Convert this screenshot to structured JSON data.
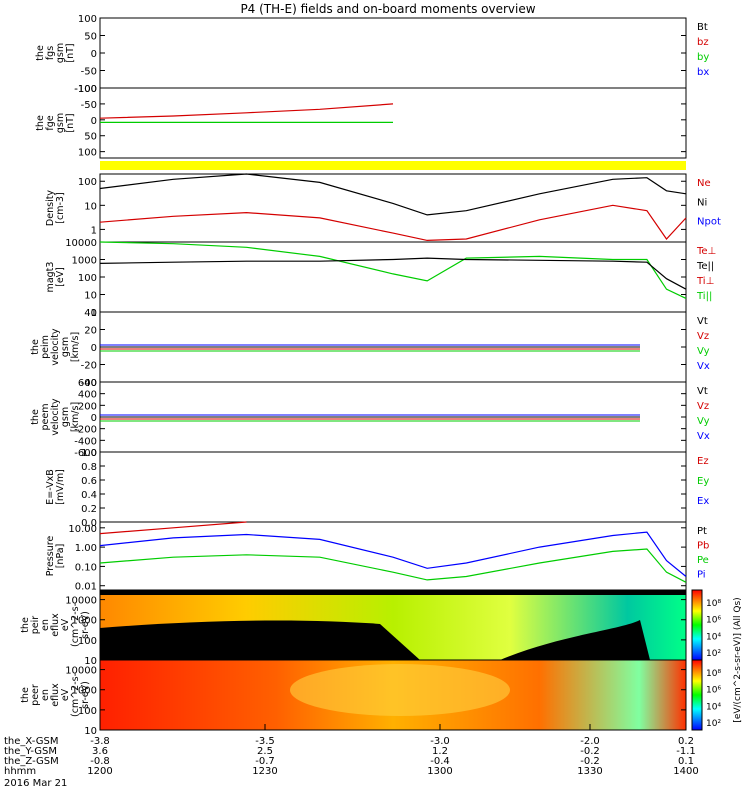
{
  "title": "P4 (TH-E) fields and on-board moments overview",
  "colors": {
    "black": "#000000",
    "red": "#d40000",
    "green": "#00cc00",
    "blue": "#0000ff",
    "yellow": "#ffff00"
  },
  "panels": [
    {
      "id": "fgs",
      "ylabel": [
        "the",
        "fgs",
        "gsm",
        "[nT]"
      ],
      "yticks": [
        "100",
        "50",
        "0",
        "-50",
        "-100"
      ],
      "ylim": [
        -100,
        100
      ],
      "legend": [
        {
          "text": "Bt",
          "color": "black"
        },
        {
          "text": "bz",
          "color": "red"
        },
        {
          "text": "by",
          "color": "green"
        },
        {
          "text": "bx",
          "color": "blue"
        }
      ]
    },
    {
      "id": "fge",
      "ylabel": [
        "the",
        "fge",
        "gsm",
        "[nT]"
      ],
      "yticks": [
        "-100",
        "-50",
        "0",
        "50",
        "100"
      ],
      "ylim": [
        -120,
        100
      ],
      "ytick_values": [
        100,
        50,
        0,
        -50,
        -100
      ],
      "legend": []
    },
    {
      "id": "density",
      "ylabel": [
        "Density",
        "[cm-3]"
      ],
      "yticks": [
        "100",
        "10",
        "1"
      ],
      "scale": "log",
      "ylim": [
        0.3,
        200
      ],
      "legend": [
        {
          "text": "Ne",
          "color": "red"
        },
        {
          "text": "Ni",
          "color": "black"
        },
        {
          "text": "Npot",
          "color": "blue"
        }
      ]
    },
    {
      "id": "temp",
      "ylabel": [
        "magt3",
        "[eV]"
      ],
      "yticks": [
        "10000",
        "1000",
        "100",
        "10",
        "1"
      ],
      "scale": "log",
      "ylim": [
        1,
        10000
      ],
      "legend": [
        {
          "text": "Te⊥",
          "color": "red"
        },
        {
          "text": "Te||",
          "color": "black"
        },
        {
          "text": "Ti⊥",
          "color": "red"
        },
        {
          "text": "Ti||",
          "color": "green"
        }
      ]
    },
    {
      "id": "veim",
      "ylabel": [
        "the",
        "peim",
        "velocity",
        "gsm",
        "[km/s]"
      ],
      "yticks": [
        "40",
        "20",
        "0",
        "-20",
        "-40"
      ],
      "ylim": [
        -40,
        40
      ],
      "legend": [
        {
          "text": "Vt",
          "color": "black"
        },
        {
          "text": "Vz",
          "color": "red"
        },
        {
          "text": "Vy",
          "color": "green"
        },
        {
          "text": "Vx",
          "color": "blue"
        }
      ]
    },
    {
      "id": "veem",
      "ylabel": [
        "the",
        "peem",
        "velocity",
        "gsm",
        "[km/s]"
      ],
      "yticks": [
        "600",
        "400",
        "200",
        "0",
        "-200",
        "-400",
        "-600"
      ],
      "ylim": [
        -600,
        600
      ],
      "legend": [
        {
          "text": "Vt",
          "color": "black"
        },
        {
          "text": "Vz",
          "color": "red"
        },
        {
          "text": "Vy",
          "color": "green"
        },
        {
          "text": "Vx",
          "color": "blue"
        }
      ]
    },
    {
      "id": "efield",
      "ylabel": [
        "E=-VxB",
        "[mV/m]"
      ],
      "yticks": [
        "1.0",
        "0.8",
        "0.6",
        "0.4",
        "0.2",
        "0.0"
      ],
      "ylim": [
        0,
        1
      ],
      "legend": [
        {
          "text": "Ez",
          "color": "red"
        },
        {
          "text": "Ey",
          "color": "green"
        },
        {
          "text": "Ex",
          "color": "blue"
        }
      ]
    },
    {
      "id": "pressure",
      "ylabel": [
        "Pressure",
        "[nPa]"
      ],
      "yticks": [
        "10.00",
        "1.00",
        "0.10",
        "0.01"
      ],
      "scale": "log",
      "ylim": [
        0.006,
        20
      ],
      "legend": [
        {
          "text": "Pt",
          "color": "black"
        },
        {
          "text": "Pb",
          "color": "red"
        },
        {
          "text": "Pe",
          "color": "green"
        },
        {
          "text": "Pi",
          "color": "blue"
        }
      ]
    },
    {
      "id": "peir",
      "ylabel": [
        "the",
        "peir",
        "en",
        "eflux",
        "eV",
        "(cm^2-s-",
        "sr-eV)"
      ],
      "yticks": [
        "10000",
        "1000",
        "100",
        "10"
      ],
      "scale": "log",
      "ylim": [
        10,
        30000
      ],
      "legend": []
    },
    {
      "id": "peer",
      "ylabel": [
        "the",
        "peer",
        "en",
        "eflux",
        "eV",
        "(cm^2-s-",
        "sr-eV)"
      ],
      "yticks": [
        "10000",
        "1000",
        "100",
        "10"
      ],
      "scale": "log",
      "ylim": [
        10,
        30000
      ],
      "legend": []
    }
  ],
  "colorbar": {
    "ticks": [
      "10⁸",
      "10⁶",
      "10⁴",
      "10²"
    ],
    "label": "[eV/(cm^2-s-sr-eV)] (All Qs)"
  },
  "xaxis": {
    "rows": [
      {
        "label": "the_X-GSM",
        "values": [
          "-3.8",
          "-3.5",
          "-3.0",
          "-2.0",
          "0.2"
        ]
      },
      {
        "label": "the_Y-GSM",
        "values": [
          "3.6",
          "2.5",
          "1.2",
          "-0.2",
          "-1.1"
        ]
      },
      {
        "label": "the_Z-GSM",
        "values": [
          "-0.8",
          "-0.7",
          "-0.4",
          "-0.2",
          "0.1"
        ]
      },
      {
        "label": "hhmm",
        "values": [
          "1200",
          "1230",
          "1300",
          "1330",
          "1400"
        ]
      }
    ],
    "date": "2016 Mar 21"
  },
  "chart_data": {
    "type": "line",
    "title": "P4 (TH-E) fields and on-board moments overview",
    "x_unit": "hhmm",
    "x": [
      1200,
      1215,
      1230,
      1245,
      1300,
      1307,
      1315,
      1330,
      1345,
      1352,
      1356,
      1400
    ],
    "series": [
      {
        "panel": "fge",
        "name": "bx",
        "values": [
          5,
          12,
          22,
          33,
          50,
          null,
          null,
          null,
          null,
          null,
          null,
          null
        ]
      },
      {
        "panel": "fge",
        "name": "by",
        "values": [
          -8,
          -8,
          -8,
          -8,
          -8,
          null,
          null,
          null,
          null,
          null,
          null,
          null
        ]
      },
      {
        "panel": "density",
        "name": "Ni",
        "values": [
          50,
          120,
          200,
          90,
          12,
          4,
          6,
          30,
          120,
          140,
          40,
          30
        ]
      },
      {
        "panel": "density",
        "name": "Ne",
        "values": [
          2,
          3.5,
          5,
          3,
          0.7,
          0.35,
          0.4,
          2.5,
          10,
          6,
          0.4,
          3
        ]
      },
      {
        "panel": "temp",
        "name": "Ti||",
        "values": [
          10000,
          8000,
          5000,
          1500,
          150,
          60,
          1200,
          1500,
          1000,
          1000,
          20,
          6
        ]
      },
      {
        "panel": "temp",
        "name": "Te||",
        "values": [
          600,
          700,
          800,
          800,
          1000,
          1200,
          1000,
          900,
          800,
          700,
          80,
          20
        ]
      },
      {
        "panel": "pressure",
        "name": "Pi",
        "values": [
          1.2,
          3,
          4.5,
          2.5,
          0.3,
          0.08,
          0.15,
          1,
          4,
          6,
          0.2,
          0.03
        ]
      },
      {
        "panel": "pressure",
        "name": "Pe",
        "values": [
          0.15,
          0.3,
          0.4,
          0.3,
          0.05,
          0.02,
          0.03,
          0.15,
          0.6,
          0.8,
          0.05,
          0.015
        ]
      },
      {
        "panel": "pressure",
        "name": "Pb",
        "values": [
          5,
          10,
          20,
          null,
          null,
          null,
          null,
          null,
          null,
          null,
          null,
          null
        ]
      }
    ]
  }
}
